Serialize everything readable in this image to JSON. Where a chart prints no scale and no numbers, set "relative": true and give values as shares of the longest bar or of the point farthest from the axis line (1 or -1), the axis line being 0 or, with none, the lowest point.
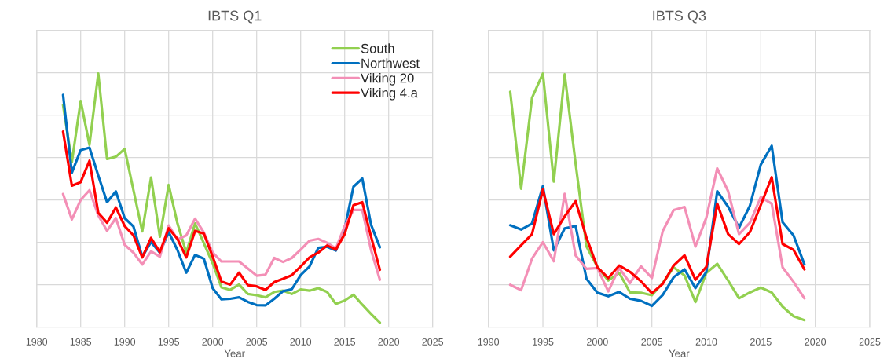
{
  "chart_data": [
    {
      "type": "line",
      "title": "IBTS Q1",
      "xlabel": "Year",
      "relative": true,
      "tick_labels": "x",
      "grid": true,
      "legend": "top right",
      "xlim": [
        1980,
        2025
      ],
      "xticks": [
        1980,
        1985,
        1990,
        1995,
        2000,
        2005,
        2010,
        2015,
        2020,
        2025
      ],
      "x": [
        1983,
        1984,
        1985,
        1986,
        1987,
        1988,
        1989,
        1990,
        1991,
        1992,
        1993,
        1994,
        1995,
        1996,
        1997,
        1998,
        1999,
        2000,
        2001,
        2002,
        2003,
        2004,
        2005,
        2006,
        2007,
        2008,
        2009,
        2010,
        2011,
        2012,
        2013,
        2014,
        2015,
        2016,
        2017,
        2018,
        2019
      ],
      "series": [
        {
          "name": "South",
          "color": "#92d050",
          "values": [
            0.876,
            0.651,
            0.892,
            0.719,
            1,
            0.663,
            0.672,
            0.703,
            0.54,
            0.378,
            0.59,
            0.357,
            0.561,
            0.409,
            0.294,
            0.409,
            0.331,
            0.252,
            0.157,
            0.147,
            0.168,
            0.131,
            0.126,
            0.118,
            0.139,
            0.144,
            0.131,
            0.149,
            0.144,
            0.154,
            0.139,
            0.092,
            0.105,
            0.128,
            0.089,
            0.052,
            0.018
          ]
        },
        {
          "name": "Northwest",
          "color": "#0070c0",
          "values": [
            0.916,
            0.609,
            0.698,
            0.708,
            0.598,
            0.493,
            0.535,
            0.43,
            0.397,
            0.278,
            0.336,
            0.294,
            0.375,
            0.304,
            0.215,
            0.285,
            0.27,
            0.154,
            0.11,
            0.112,
            0.118,
            0.1,
            0.087,
            0.086,
            0.112,
            0.142,
            0.15,
            0.205,
            0.239,
            0.313,
            0.317,
            0.302,
            0.388,
            0.554,
            0.586,
            0.404,
            0.315
          ]
        },
        {
          "name": "Viking 20",
          "color": "#f38fb6",
          "values": [
            0.525,
            0.425,
            0.502,
            0.54,
            0.441,
            0.38,
            0.43,
            0.325,
            0.294,
            0.247,
            0.299,
            0.278,
            0.401,
            0.346,
            0.362,
            0.428,
            0.373,
            0.294,
            0.259,
            0.259,
            0.259,
            0.231,
            0.203,
            0.207,
            0.273,
            0.257,
            0.273,
            0.306,
            0.341,
            0.348,
            0.333,
            0.31,
            0.399,
            0.462,
            0.462,
            0.304,
            0.187
          ]
        },
        {
          "name": "Viking 4.a",
          "color": "#ff0000",
          "values": [
            0.771,
            0.558,
            0.572,
            0.656,
            0.451,
            0.412,
            0.472,
            0.399,
            0.362,
            0.275,
            0.352,
            0.296,
            0.39,
            0.348,
            0.275,
            0.38,
            0.369,
            0.278,
            0.18,
            0.168,
            0.215,
            0.166,
            0.161,
            0.147,
            0.178,
            0.191,
            0.205,
            0.239,
            0.275,
            0.294,
            0.322,
            0.306,
            0.367,
            0.481,
            0.493,
            0.357,
            0.226
          ]
        }
      ]
    },
    {
      "type": "line",
      "title": "IBTS Q3",
      "xlabel": "Year",
      "relative": true,
      "tick_labels": "x",
      "grid": true,
      "xlim": [
        1990,
        2025
      ],
      "xticks": [
        1990,
        1995,
        2000,
        2005,
        2010,
        2015,
        2020,
        2025
      ],
      "x": [
        1992,
        1993,
        1994,
        1995,
        1996,
        1997,
        1998,
        1999,
        2000,
        2001,
        2002,
        2003,
        2004,
        2005,
        2006,
        2007,
        2008,
        2009,
        2010,
        2011,
        2012,
        2013,
        2014,
        2015,
        2016,
        2017,
        2018,
        2019
      ],
      "series": [
        {
          "color": "#92d050",
          "values": [
            0.928,
            0.546,
            0.904,
            1,
            0.574,
            0.997,
            0.645,
            0.318,
            0.238,
            0.184,
            0.214,
            0.137,
            0.136,
            0.126,
            0.174,
            0.236,
            0.204,
            0.099,
            0.214,
            0.25,
            0.184,
            0.114,
            0.137,
            0.156,
            0.137,
            0.081,
            0.043,
            0.028
          ]
        },
        {
          "color": "#0070c0",
          "values": [
            0.402,
            0.385,
            0.409,
            0.556,
            0.303,
            0.39,
            0.399,
            0.191,
            0.136,
            0.122,
            0.139,
            0.112,
            0.104,
            0.084,
            0.127,
            0.197,
            0.228,
            0.154,
            0.218,
            0.536,
            0.475,
            0.392,
            0.479,
            0.641,
            0.715,
            0.414,
            0.362,
            0.248
          ]
        },
        {
          "color": "#f38fb6",
          "values": [
            0.167,
            0.146,
            0.27,
            0.335,
            0.26,
            0.526,
            0.283,
            0.23,
            0.233,
            0.141,
            0.233,
            0.174,
            0.24,
            0.194,
            0.379,
            0.462,
            0.474,
            0.318,
            0.432,
            0.626,
            0.536,
            0.367,
            0.412,
            0.513,
            0.487,
            0.236,
            0.179,
            0.114
          ]
        },
        {
          "color": "#ff0000",
          "values": [
            0.278,
            0.323,
            0.367,
            0.543,
            0.367,
            0.437,
            0.497,
            0.353,
            0.236,
            0.194,
            0.243,
            0.218,
            0.181,
            0.134,
            0.171,
            0.243,
            0.283,
            0.187,
            0.238,
            0.487,
            0.367,
            0.328,
            0.375,
            0.482,
            0.591,
            0.328,
            0.305,
            0.228
          ]
        }
      ]
    }
  ]
}
